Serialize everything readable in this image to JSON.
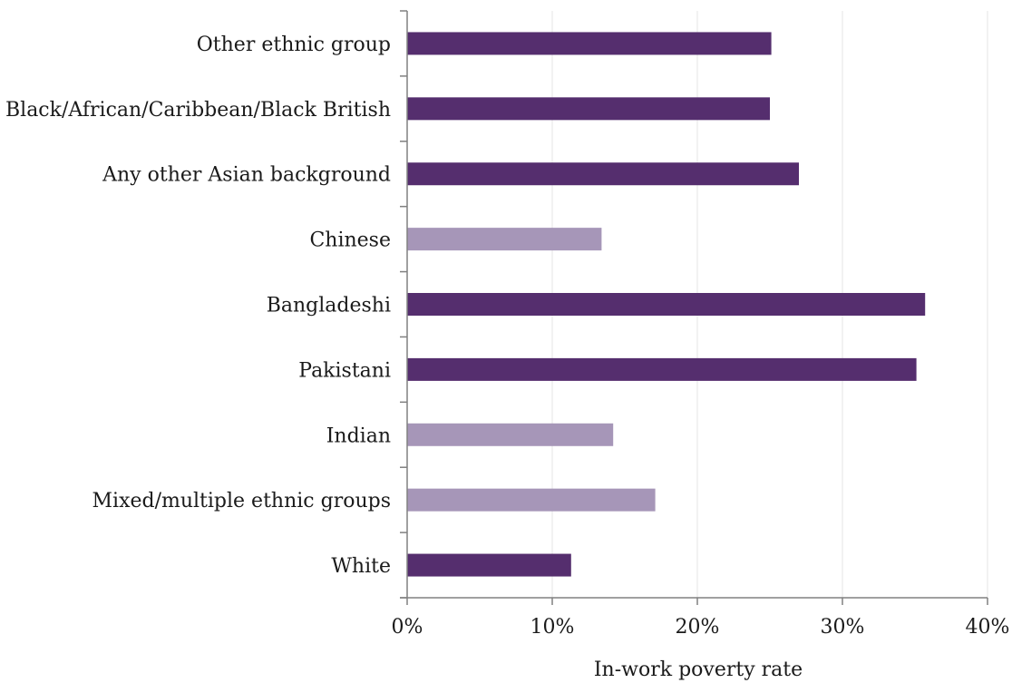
{
  "chart_data": {
    "type": "bar",
    "orientation": "horizontal",
    "categories": [
      "Other ethnic group",
      "Black/African/Caribbean/Black British",
      "Any other Asian background",
      "Chinese",
      "Bangladeshi",
      "Pakistani",
      "Indian",
      "Mixed/multiple ethnic groups",
      "White"
    ],
    "values": [
      25.1,
      25.0,
      27.0,
      13.4,
      35.7,
      35.1,
      14.2,
      17.1,
      11.3
    ],
    "highlight": [
      true,
      true,
      true,
      false,
      true,
      true,
      false,
      false,
      true
    ],
    "xlabel": "In-work poverty rate",
    "ylabel": "",
    "xlim": [
      0,
      40
    ],
    "xticks": [
      0,
      10,
      20,
      30,
      40
    ],
    "xtick_labels": [
      "0%",
      "10%",
      "20%",
      "30%",
      "40%"
    ],
    "grid": "vertical",
    "colors": {
      "highlight": "#552e6e",
      "muted": "#a696b8"
    }
  }
}
